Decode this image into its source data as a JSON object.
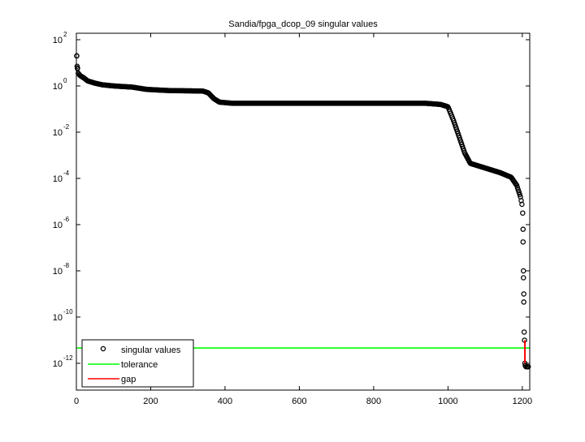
{
  "chart_data": {
    "type": "scatter",
    "title": "Sandia/fpga_dcop_09 singular values",
    "xlabel": "",
    "ylabel": "",
    "xscale": "linear",
    "yscale": "log",
    "xlim": [
      0,
      1220
    ],
    "ylim_log10": [
      -13.16,
      2.28
    ],
    "grid": false,
    "x_ticks": [
      0,
      200,
      400,
      600,
      800,
      1000,
      1200
    ],
    "x_tick_labels": [
      "0",
      "200",
      "400",
      "600",
      "800",
      "1000",
      "1200"
    ],
    "y_ticks_log10": [
      2,
      0,
      -2,
      -4,
      -6,
      -8,
      -10,
      -12
    ],
    "y_tick_labels": [
      "10^2",
      "10^0",
      "10^-2",
      "10^-4",
      "10^-6",
      "10^-8",
      "10^-10",
      "10^-12"
    ],
    "legend": {
      "position": "lower left",
      "entries": [
        {
          "label": "singular values",
          "marker": "circle",
          "color": "#000000"
        },
        {
          "label": "tolerance",
          "marker": "line",
          "color": "#00ff00"
        },
        {
          "label": "gap",
          "marker": "line",
          "color": "#ff0000"
        }
      ]
    },
    "series": [
      {
        "name": "singular values",
        "style": "circle-markers",
        "color": "#000000",
        "profile_log10": [
          [
            1,
            1.3
          ],
          [
            2,
            0.8
          ],
          [
            3,
            0.75
          ],
          [
            5,
            0.55
          ],
          [
            10,
            0.45
          ],
          [
            20,
            0.35
          ],
          [
            30,
            0.22
          ],
          [
            50,
            0.12
          ],
          [
            70,
            0.05
          ],
          [
            100,
            0.0
          ],
          [
            150,
            -0.05
          ],
          [
            190,
            -0.15
          ],
          [
            250,
            -0.2
          ],
          [
            340,
            -0.22
          ],
          [
            355,
            -0.3
          ],
          [
            370,
            -0.55
          ],
          [
            385,
            -0.7
          ],
          [
            420,
            -0.75
          ],
          [
            600,
            -0.75
          ],
          [
            800,
            -0.75
          ],
          [
            940,
            -0.75
          ],
          [
            980,
            -0.8
          ],
          [
            1000,
            -0.9
          ],
          [
            1015,
            -1.5
          ],
          [
            1030,
            -2.2
          ],
          [
            1045,
            -2.9
          ],
          [
            1060,
            -3.35
          ],
          [
            1100,
            -3.55
          ],
          [
            1140,
            -3.75
          ],
          [
            1170,
            -3.95
          ],
          [
            1185,
            -4.3
          ],
          [
            1195,
            -4.8
          ],
          [
            1200,
            -5.2
          ],
          [
            1201,
            -5.5
          ]
        ],
        "tail_points_log10": [
          [
            1202,
            -6.2
          ],
          [
            1202,
            -6.75
          ],
          [
            1203,
            -8.0
          ],
          [
            1203,
            -8.3
          ],
          [
            1204,
            -9.0
          ],
          [
            1204,
            -9.35
          ],
          [
            1205,
            -10.65
          ],
          [
            1206,
            -11.0
          ],
          [
            1207,
            -12.0
          ],
          [
            1208,
            -12.1
          ],
          [
            1210,
            -12.15
          ],
          [
            1213,
            -12.15
          ],
          [
            1216,
            -12.15
          ]
        ]
      },
      {
        "name": "tolerance",
        "style": "line",
        "color": "#00ff00",
        "y_value": 4.6e-12
      },
      {
        "name": "gap",
        "style": "line",
        "color": "#ff0000",
        "x": 1207,
        "y_from": 1e-11,
        "y_to": 1e-12
      }
    ]
  }
}
